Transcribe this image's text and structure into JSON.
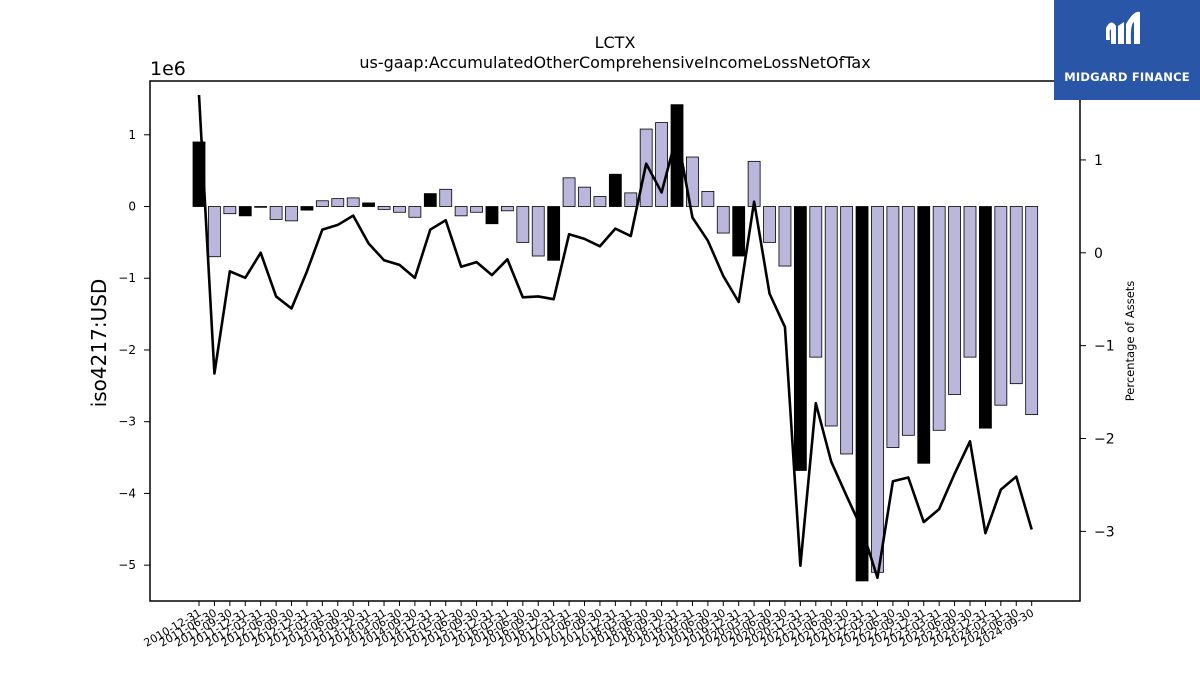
{
  "chart_data": {
    "type": "bar",
    "title": "LCTX",
    "subtitle": "us-gaap:AccumulatedOtherComprehensiveIncomeLossNetOfTax",
    "ylabel": "iso4217:USD",
    "y2label": "Percentage of Assets",
    "yscale_label": "1e6",
    "ylim": [
      -5.5,
      1.75
    ],
    "y2lim": [
      -3.75,
      1.85
    ],
    "yticks": [
      -5,
      -4,
      -3,
      -2,
      -1,
      0,
      1
    ],
    "yticklabels": [
      "−5",
      "−4",
      "−3",
      "−2",
      "−1",
      "0",
      "1"
    ],
    "y2ticks": [
      -3,
      -2,
      -1,
      0,
      1
    ],
    "y2ticklabels": [
      "−3",
      "−2",
      "−1",
      "0",
      "1"
    ],
    "categories": [
      "2010-12-31",
      "2011-06-30",
      "2011-09-30",
      "2011-12-31",
      "2012-03-31",
      "2012-06-30",
      "2012-09-30",
      "2012-12-31",
      "2013-03-31",
      "2013-06-30",
      "2013-09-30",
      "2013-12-31",
      "2014-03-31",
      "2014-06-30",
      "2014-09-30",
      "2014-12-31",
      "2015-03-31",
      "2015-06-30",
      "2015-09-30",
      "2015-12-31",
      "2016-03-31",
      "2016-06-30",
      "2016-09-30",
      "2016-12-31",
      "2017-03-31",
      "2017-06-30",
      "2017-09-30",
      "2017-12-31",
      "2018-03-31",
      "2018-06-30",
      "2018-09-30",
      "2018-12-31",
      "2019-03-31",
      "2019-06-30",
      "2019-09-30",
      "2019-12-31",
      "2020-03-31",
      "2020-06-30",
      "2020-09-30",
      "2020-12-31",
      "2021-03-31",
      "2021-06-30",
      "2021-09-30",
      "2021-12-31",
      "2022-03-31",
      "2022-06-30",
      "2022-09-30",
      "2022-12-31",
      "2023-03-31",
      "2023-06-30",
      "2023-09-30",
      "2023-12-31",
      "2024-03-31",
      "2024-06-30",
      "2024-09-30"
    ],
    "series": [
      {
        "kind": "bar",
        "values": [
          0.9,
          -0.7,
          -0.1,
          -0.13,
          -0.01,
          -0.18,
          -0.2,
          -0.05,
          0.08,
          0.11,
          0.12,
          0.05,
          -0.04,
          -0.08,
          -0.15,
          0.18,
          0.24,
          -0.13,
          -0.08,
          -0.24,
          -0.06,
          -0.5,
          -0.69,
          -0.75,
          0.4,
          0.27,
          0.14,
          0.45,
          0.19,
          1.08,
          1.17,
          1.42,
          0.69,
          0.21,
          -0.37,
          -0.69,
          0.63,
          -0.5,
          -0.83,
          -3.68,
          -2.1,
          -3.06,
          -3.45,
          -5.22,
          -5.1,
          -3.36,
          -3.19,
          -3.58,
          -3.12,
          -2.62,
          -2.1,
          -3.09,
          -2.77,
          -2.47,
          -2.9
        ],
        "highlight": [
          true,
          false,
          false,
          true,
          true,
          false,
          false,
          true,
          false,
          false,
          false,
          true,
          false,
          false,
          false,
          true,
          false,
          false,
          false,
          true,
          false,
          false,
          false,
          true,
          false,
          false,
          false,
          true,
          false,
          false,
          false,
          true,
          false,
          false,
          false,
          true,
          false,
          false,
          false,
          true,
          false,
          false,
          false,
          true,
          false,
          false,
          false,
          true,
          false,
          false,
          false,
          true,
          false,
          false,
          false
        ]
      },
      {
        "kind": "line",
        "axis": "right",
        "values": [
          1.7,
          -1.3,
          -0.2,
          -0.27,
          0.0,
          -0.47,
          -0.6,
          -0.2,
          0.25,
          0.3,
          0.4,
          0.1,
          -0.08,
          -0.13,
          -0.27,
          0.25,
          0.35,
          -0.15,
          -0.1,
          -0.24,
          -0.07,
          -0.48,
          -0.47,
          -0.5,
          0.2,
          0.15,
          0.07,
          0.26,
          0.18,
          0.96,
          0.65,
          1.28,
          0.38,
          0.13,
          -0.25,
          -0.53,
          0.55,
          -0.44,
          -0.8,
          -3.37,
          -1.62,
          -2.25,
          -2.62,
          -2.98,
          -3.5,
          -2.46,
          -2.42,
          -2.9,
          -2.76,
          -2.38,
          -2.03,
          -3.02,
          -2.55,
          -2.41,
          -2.98
        ]
      }
    ],
    "colors": {
      "bar": "#bab6dc",
      "bar_highlight": "#000000",
      "bar_edge": "#000000",
      "line": "#000000"
    },
    "grid": false
  },
  "logo": {
    "text": "MIDGARD FINANCE",
    "background": "#2a56a8"
  }
}
